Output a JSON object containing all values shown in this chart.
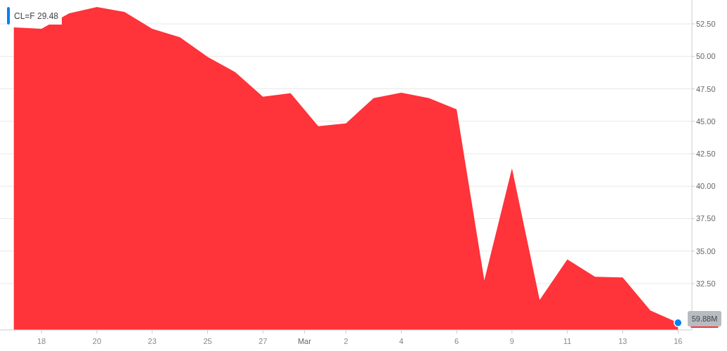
{
  "chart_data": {
    "type": "area",
    "categories": [
      null,
      "18",
      null,
      "20",
      null,
      "23",
      null,
      "25",
      null,
      "27",
      null,
      null,
      "2",
      null,
      "4",
      null,
      "6",
      null,
      "9",
      null,
      "11",
      null,
      "13",
      null,
      "16"
    ],
    "annotations": [
      "29.48",
      "Mar",
      "59.88M"
    ],
    "series": [
      {
        "name": "CL=F",
        "color": "#ff333a",
        "values": [
          52.23,
          52.12,
          53.31,
          53.8,
          53.42,
          52.12,
          51.47,
          49.96,
          48.78,
          46.89,
          47.16,
          44.62,
          44.84,
          46.78,
          47.21,
          46.78,
          45.92,
          32.75,
          41.38,
          31.24,
          34.37,
          33.02,
          32.97,
          30.43,
          29.48
        ]
      }
    ],
    "ylim": [
      28.93,
      54.34
    ],
    "yticks": [
      {
        "value": 32.5,
        "label": "32.50"
      },
      {
        "value": 35,
        "label": "35.00"
      },
      {
        "value": 37.5,
        "label": "37.50"
      },
      {
        "value": 40,
        "label": "40.00"
      },
      {
        "value": 42.5,
        "label": "42.50"
      },
      {
        "value": 45,
        "label": "45.00"
      },
      {
        "value": 47.5,
        "label": "47.50"
      },
      {
        "value": 50,
        "label": "50.00"
      },
      {
        "value": 52.5,
        "label": "52.50"
      }
    ],
    "grid": "y",
    "legend": "top left"
  }
}
